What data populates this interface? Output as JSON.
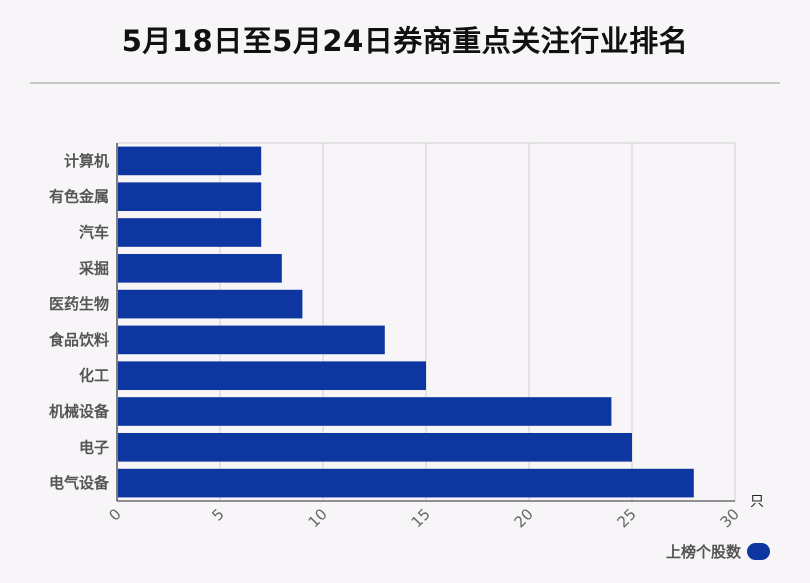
{
  "title": "5月18日至5月24日券商重点关注行业排名",
  "legend": {
    "label": "上榜个股数",
    "color": "#0d36a0"
  },
  "chart_data": {
    "type": "bar",
    "orientation": "horizontal",
    "title": "5月18日至5月24日券商重点关注行业排名",
    "unit_label": "只",
    "categories": [
      "计算机",
      "有色金属",
      "汽车",
      "采掘",
      "医药生物",
      "食品饮料",
      "化工",
      "机械设备",
      "电子",
      "电气设备"
    ],
    "series": [
      {
        "name": "上榜个股数",
        "values": [
          7,
          7,
          7,
          8,
          9,
          13,
          15,
          24,
          25,
          28
        ]
      }
    ],
    "xlim": [
      0,
      30
    ],
    "xticks": [
      0,
      5,
      10,
      15,
      20,
      25,
      30
    ],
    "grid": true,
    "legend_position": "bottom-right",
    "bar_color": "#0d36a0"
  }
}
